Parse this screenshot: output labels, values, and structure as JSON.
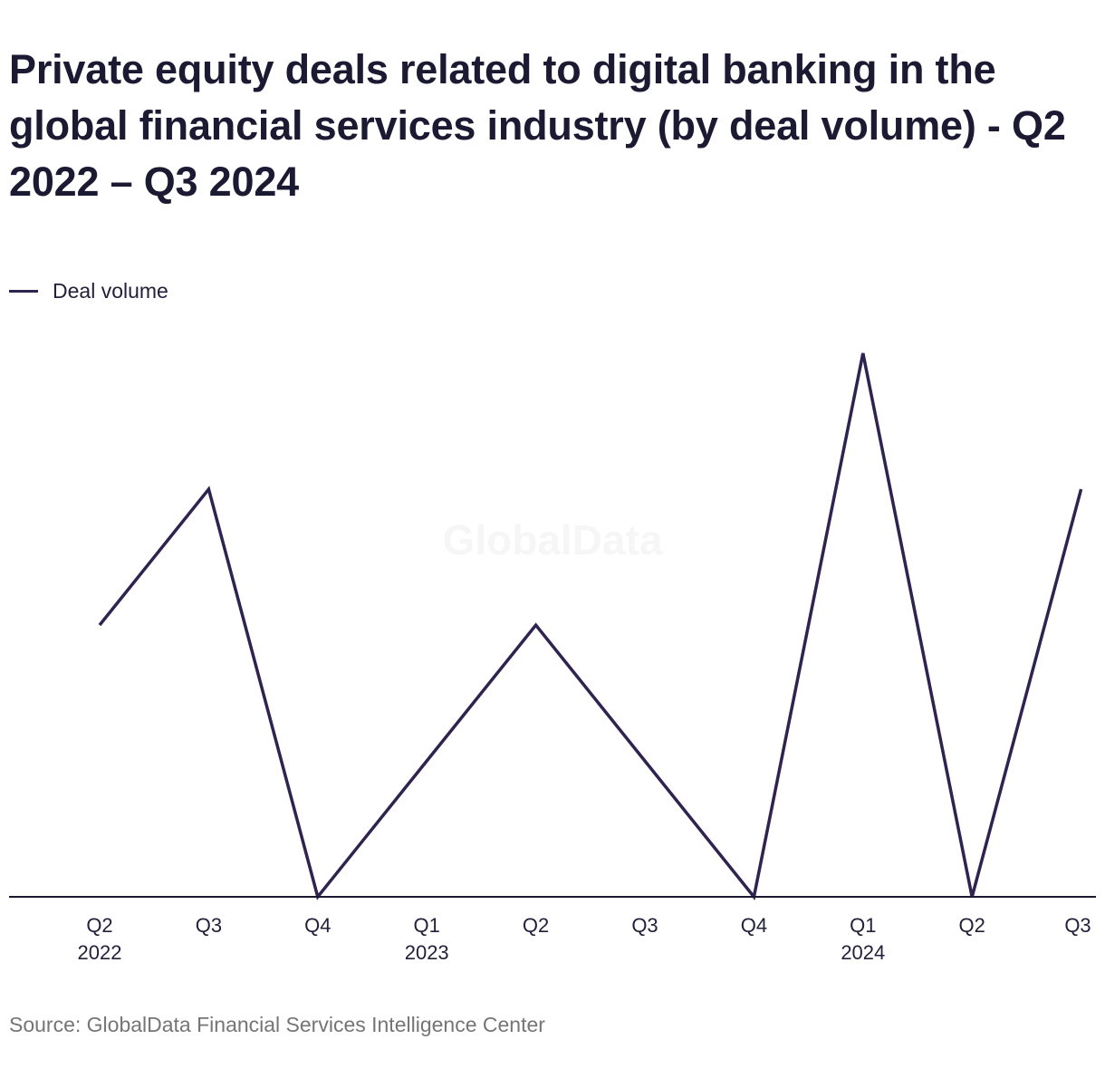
{
  "title": "Private equity deals related to digital banking in the global financial services industry (by deal volume) - Q2 2022 – Q3 2024",
  "legend": {
    "label": "Deal volume"
  },
  "watermark": "GlobalData",
  "source": "Source: GlobalData Financial Services Intelligence Center",
  "colors": {
    "line": "#2f2350",
    "axis": "#1b1930",
    "text": "#1c1a33",
    "source": "#757575"
  },
  "chart_data": {
    "type": "line",
    "title": "Private equity deals related to digital banking in the global financial services industry (by deal volume) - Q2 2022 – Q3 2024",
    "xlabel": "",
    "ylabel": "",
    "grid": false,
    "legend_position": "top-left",
    "categories": [
      {
        "quarter": "Q2",
        "year": "2022"
      },
      {
        "quarter": "Q3",
        "year": ""
      },
      {
        "quarter": "Q4",
        "year": ""
      },
      {
        "quarter": "Q1",
        "year": "2023"
      },
      {
        "quarter": "Q2",
        "year": ""
      },
      {
        "quarter": "Q3",
        "year": ""
      },
      {
        "quarter": "Q4",
        "year": ""
      },
      {
        "quarter": "Q1",
        "year": "2024"
      },
      {
        "quarter": "Q2",
        "year": ""
      },
      {
        "quarter": "Q3",
        "year": ""
      }
    ],
    "series": [
      {
        "name": "Deal volume",
        "values": [
          2,
          3,
          0,
          1,
          2,
          1,
          0,
          4,
          0,
          3
        ]
      }
    ],
    "ylim": [
      0,
      4
    ]
  }
}
